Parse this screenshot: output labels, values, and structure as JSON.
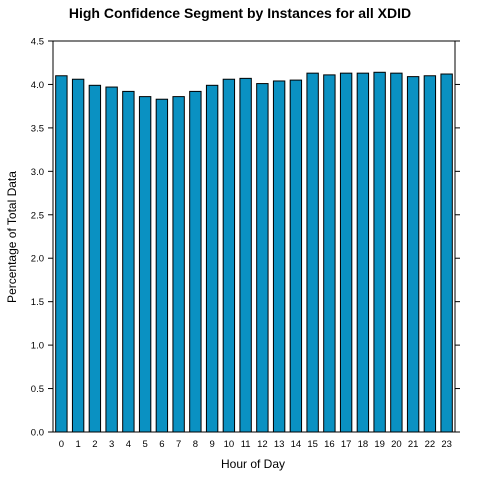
{
  "chart_data": {
    "type": "bar",
    "title": "High Confidence Segment by Instances for all XDID",
    "xlabel": "Hour of Day",
    "ylabel": "Percentage of Total Data",
    "categories": [
      "0",
      "1",
      "2",
      "3",
      "4",
      "5",
      "6",
      "7",
      "8",
      "9",
      "10",
      "11",
      "12",
      "13",
      "14",
      "15",
      "16",
      "17",
      "18",
      "19",
      "20",
      "21",
      "22",
      "23"
    ],
    "values": [
      4.1,
      4.06,
      3.99,
      3.97,
      3.92,
      3.86,
      3.83,
      3.86,
      3.92,
      3.99,
      4.06,
      4.07,
      4.01,
      4.04,
      4.05,
      4.13,
      4.11,
      4.13,
      4.13,
      4.14,
      4.13,
      4.09,
      4.1,
      4.12
    ],
    "ylim": [
      0,
      4.5
    ],
    "yticks": [
      "0.0",
      "0.5",
      "1.0",
      "1.5",
      "2.0",
      "2.5",
      "3.0",
      "3.5",
      "4.0",
      "4.5"
    ],
    "grid": false,
    "legend": "none",
    "bar_color": "#0a91c2"
  }
}
